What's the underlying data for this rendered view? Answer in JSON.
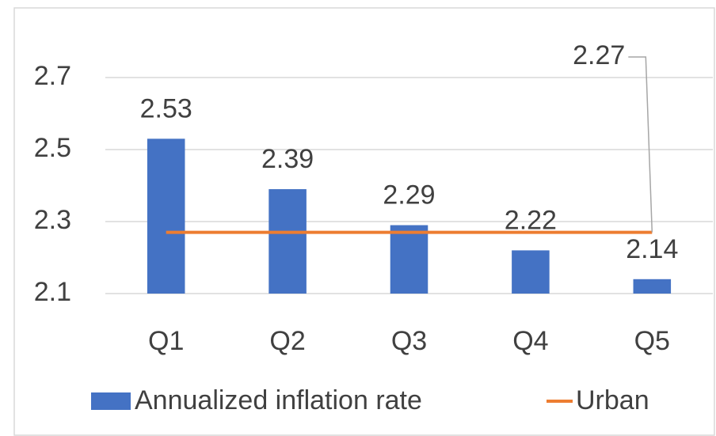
{
  "chart_data": {
    "type": "bar",
    "categories": [
      "Q1",
      "Q2",
      "Q3",
      "Q4",
      "Q5"
    ],
    "series": [
      {
        "name": "Annualized inflation rate",
        "type": "bar",
        "color": "#4472c4",
        "values": [
          2.53,
          2.39,
          2.29,
          2.22,
          2.14
        ]
      },
      {
        "name": "Urban",
        "type": "line",
        "color": "#ed7d31",
        "values": [
          2.27,
          2.27,
          2.27,
          2.27,
          2.27
        ]
      }
    ],
    "ylim": [
      2.1,
      2.8
    ],
    "yticks": [
      2.1,
      2.3,
      2.5,
      2.7
    ],
    "grid": true,
    "legend": "bottom"
  }
}
